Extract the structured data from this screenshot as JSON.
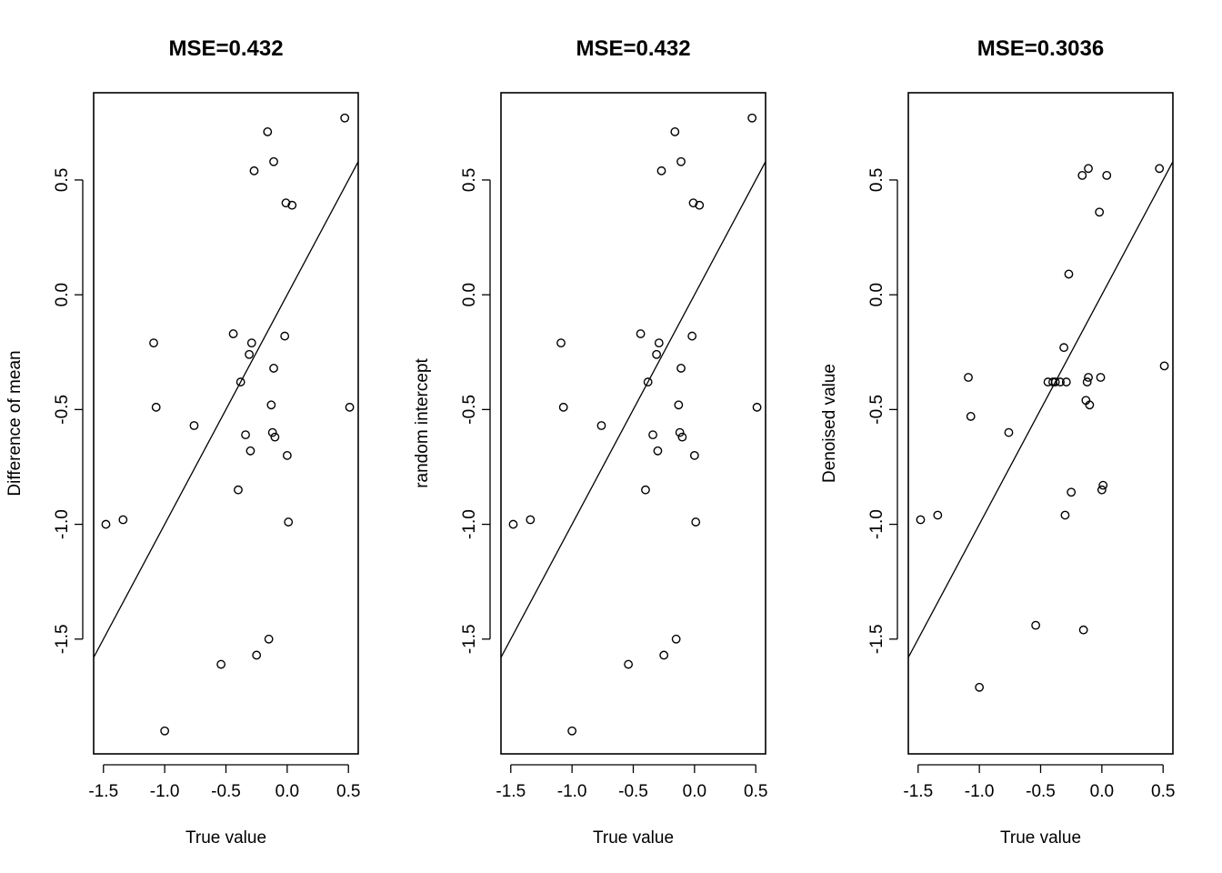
{
  "chart_data": [
    {
      "type": "scatter",
      "title": "MSE=0.432",
      "xlabel": "True value",
      "ylabel": "Difference of mean",
      "xlim": [
        -1.58,
        0.58
      ],
      "ylim": [
        -2.0,
        0.88
      ],
      "xticks": [
        -1.5,
        -1.0,
        -0.5,
        0.0,
        0.5
      ],
      "xtick_labels": [
        "-1.5",
        "-1.0",
        "-0.5",
        "0.0",
        "0.5"
      ],
      "yticks": [
        -1.5,
        -1.0,
        -0.5,
        0.0,
        0.5
      ],
      "ytick_labels": [
        "-1.5",
        "-1.0",
        "-0.5",
        "0.0",
        "0.5"
      ],
      "reference_line": {
        "intercept": 0,
        "slope": 1
      },
      "points": [
        {
          "x": -1.48,
          "y": -1.0
        },
        {
          "x": -1.34,
          "y": -0.98
        },
        {
          "x": -1.09,
          "y": -0.21
        },
        {
          "x": -1.07,
          "y": -0.49
        },
        {
          "x": -1.0,
          "y": -1.9
        },
        {
          "x": -0.76,
          "y": -0.57
        },
        {
          "x": -0.54,
          "y": -1.61
        },
        {
          "x": -0.44,
          "y": -0.17
        },
        {
          "x": -0.4,
          "y": -0.85
        },
        {
          "x": -0.38,
          "y": -0.38
        },
        {
          "x": -0.34,
          "y": -0.61
        },
        {
          "x": -0.31,
          "y": -0.26
        },
        {
          "x": -0.3,
          "y": -0.68
        },
        {
          "x": -0.29,
          "y": -0.21
        },
        {
          "x": -0.27,
          "y": 0.54
        },
        {
          "x": -0.25,
          "y": -1.57
        },
        {
          "x": -0.16,
          "y": 0.71
        },
        {
          "x": -0.15,
          "y": -1.5
        },
        {
          "x": -0.13,
          "y": -0.48
        },
        {
          "x": -0.12,
          "y": -0.6
        },
        {
          "x": -0.11,
          "y": -0.32
        },
        {
          "x": -0.11,
          "y": 0.58
        },
        {
          "x": -0.1,
          "y": -0.62
        },
        {
          "x": -0.02,
          "y": -0.18
        },
        {
          "x": -0.01,
          "y": 0.4
        },
        {
          "x": 0.0,
          "y": -0.7
        },
        {
          "x": 0.01,
          "y": -0.99
        },
        {
          "x": 0.04,
          "y": 0.39
        },
        {
          "x": 0.47,
          "y": 0.77
        },
        {
          "x": 0.51,
          "y": -0.49
        }
      ]
    },
    {
      "type": "scatter",
      "title": "MSE=0.432",
      "xlabel": "True value",
      "ylabel": "random intercept",
      "xlim": [
        -1.58,
        0.58
      ],
      "ylim": [
        -2.0,
        0.88
      ],
      "xticks": [
        -1.5,
        -1.0,
        -0.5,
        0.0,
        0.5
      ],
      "xtick_labels": [
        "-1.5",
        "-1.0",
        "-0.5",
        "0.0",
        "0.5"
      ],
      "yticks": [
        -1.5,
        -1.0,
        -0.5,
        0.0,
        0.5
      ],
      "ytick_labels": [
        "-1.5",
        "-1.0",
        "-0.5",
        "0.0",
        "0.5"
      ],
      "reference_line": {
        "intercept": 0,
        "slope": 1
      },
      "points": [
        {
          "x": -1.48,
          "y": -1.0
        },
        {
          "x": -1.34,
          "y": -0.98
        },
        {
          "x": -1.09,
          "y": -0.21
        },
        {
          "x": -1.07,
          "y": -0.49
        },
        {
          "x": -1.0,
          "y": -1.9
        },
        {
          "x": -0.76,
          "y": -0.57
        },
        {
          "x": -0.54,
          "y": -1.61
        },
        {
          "x": -0.44,
          "y": -0.17
        },
        {
          "x": -0.4,
          "y": -0.85
        },
        {
          "x": -0.38,
          "y": -0.38
        },
        {
          "x": -0.34,
          "y": -0.61
        },
        {
          "x": -0.31,
          "y": -0.26
        },
        {
          "x": -0.3,
          "y": -0.68
        },
        {
          "x": -0.29,
          "y": -0.21
        },
        {
          "x": -0.27,
          "y": 0.54
        },
        {
          "x": -0.25,
          "y": -1.57
        },
        {
          "x": -0.16,
          "y": 0.71
        },
        {
          "x": -0.15,
          "y": -1.5
        },
        {
          "x": -0.13,
          "y": -0.48
        },
        {
          "x": -0.12,
          "y": -0.6
        },
        {
          "x": -0.11,
          "y": -0.32
        },
        {
          "x": -0.11,
          "y": 0.58
        },
        {
          "x": -0.1,
          "y": -0.62
        },
        {
          "x": -0.02,
          "y": -0.18
        },
        {
          "x": -0.01,
          "y": 0.4
        },
        {
          "x": 0.0,
          "y": -0.7
        },
        {
          "x": 0.01,
          "y": -0.99
        },
        {
          "x": 0.04,
          "y": 0.39
        },
        {
          "x": 0.47,
          "y": 0.77
        },
        {
          "x": 0.51,
          "y": -0.49
        }
      ]
    },
    {
      "type": "scatter",
      "title": "MSE=0.3036",
      "xlabel": "True value",
      "ylabel": "Denoised value",
      "xlim": [
        -1.58,
        0.58
      ],
      "ylim": [
        -2.0,
        0.88
      ],
      "xticks": [
        -1.5,
        -1.0,
        -0.5,
        0.0,
        0.5
      ],
      "xtick_labels": [
        "-1.5",
        "-1.0",
        "-0.5",
        "0.0",
        "0.5"
      ],
      "yticks": [
        -1.5,
        -1.0,
        -0.5,
        0.0,
        0.5
      ],
      "ytick_labels": [
        "-1.5",
        "-1.0",
        "-0.5",
        "0.0",
        "0.5"
      ],
      "reference_line": {
        "intercept": 0,
        "slope": 1
      },
      "points": [
        {
          "x": -1.48,
          "y": -0.98
        },
        {
          "x": -1.34,
          "y": -0.96
        },
        {
          "x": -1.09,
          "y": -0.36
        },
        {
          "x": -1.07,
          "y": -0.53
        },
        {
          "x": -1.0,
          "y": -1.71
        },
        {
          "x": -0.76,
          "y": -0.6
        },
        {
          "x": -0.54,
          "y": -1.44
        },
        {
          "x": -0.44,
          "y": -0.38
        },
        {
          "x": -0.4,
          "y": -0.38
        },
        {
          "x": -0.38,
          "y": -0.38
        },
        {
          "x": -0.34,
          "y": -0.38
        },
        {
          "x": -0.31,
          "y": -0.23
        },
        {
          "x": -0.3,
          "y": -0.96
        },
        {
          "x": -0.29,
          "y": -0.38
        },
        {
          "x": -0.27,
          "y": 0.09
        },
        {
          "x": -0.25,
          "y": -0.86
        },
        {
          "x": -0.16,
          "y": 0.52
        },
        {
          "x": -0.15,
          "y": -1.46
        },
        {
          "x": -0.13,
          "y": -0.46
        },
        {
          "x": -0.12,
          "y": -0.38
        },
        {
          "x": -0.11,
          "y": -0.36
        },
        {
          "x": -0.11,
          "y": 0.55
        },
        {
          "x": -0.1,
          "y": -0.48
        },
        {
          "x": -0.02,
          "y": 0.36
        },
        {
          "x": -0.01,
          "y": -0.36
        },
        {
          "x": 0.0,
          "y": -0.85
        },
        {
          "x": 0.01,
          "y": -0.83
        },
        {
          "x": 0.04,
          "y": 0.52
        },
        {
          "x": 0.47,
          "y": 0.55
        },
        {
          "x": 0.51,
          "y": -0.31
        }
      ]
    }
  ]
}
